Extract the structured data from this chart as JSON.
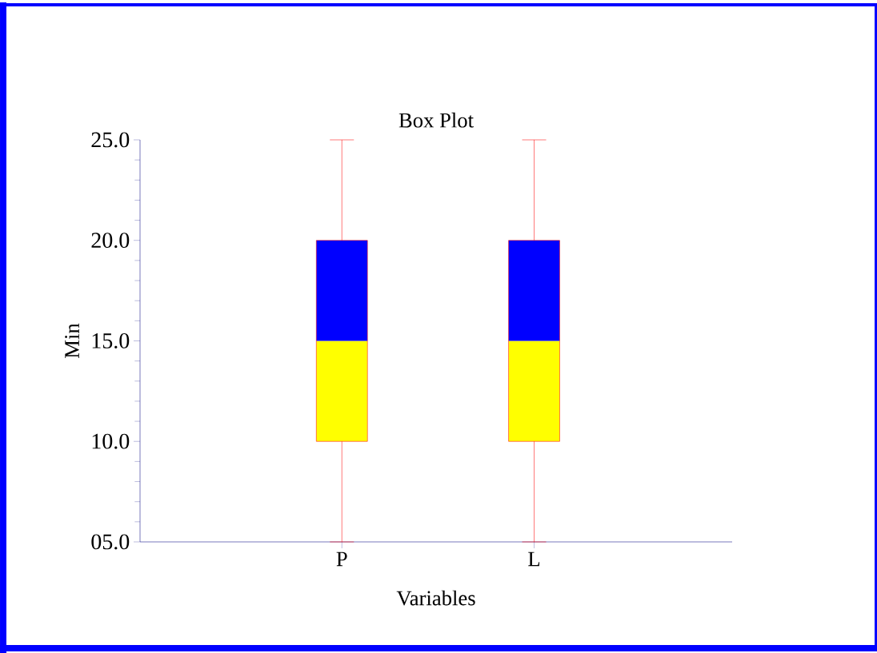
{
  "chart_data": {
    "type": "box",
    "title": "Box Plot",
    "xlabel": "Variables",
    "ylabel": "Min",
    "categories": [
      "P",
      "L"
    ],
    "series": [
      {
        "color": "#0000ff",
        "colors": [
          "#ffff00",
          "#ffff00"
        ],
        "boxes": [
          {
            "low": 5,
            "q1": 10,
            "median": 15,
            "q3": 20,
            "high": 25
          },
          {
            "low": 5,
            "q1": 10,
            "median": 15,
            "q3": 20,
            "high": 25
          }
        ]
      }
    ],
    "ylim": [
      5,
      25
    ],
    "yticks": [
      {
        "value": 5,
        "label": "05.0"
      },
      {
        "value": 10,
        "label": "10.0"
      },
      {
        "value": 15,
        "label": "15.0"
      },
      {
        "value": 20,
        "label": "20.0"
      },
      {
        "value": 25,
        "label": "25.0"
      }
    ]
  }
}
